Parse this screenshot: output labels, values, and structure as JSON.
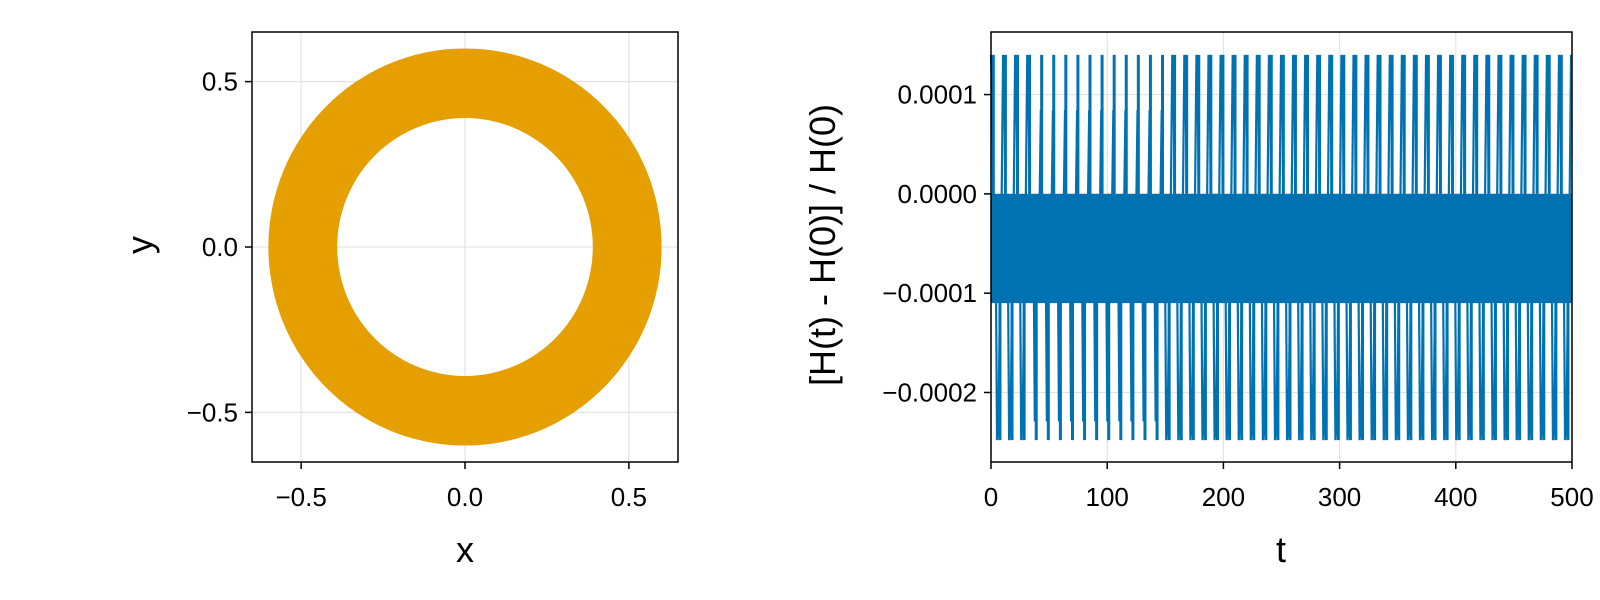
{
  "colors": {
    "orbit": "#E69F00",
    "energy": "#0072B2"
  },
  "chart_data": [
    {
      "type": "scatter",
      "xlabel": "x",
      "ylabel": "y",
      "xlim": [
        -0.65,
        0.65
      ],
      "ylim": [
        -0.65,
        0.65
      ],
      "xticks": [
        -0.5,
        0.0,
        0.5
      ],
      "yticks": [
        -0.5,
        0.0,
        0.5
      ],
      "xtick_labels": [
        "−0.5",
        "0.0",
        "0.5"
      ],
      "ytick_labels": [
        "−0.5",
        "0.0",
        "0.5"
      ],
      "grid": true,
      "series": [
        {
          "shape": "annulus",
          "center": [
            0,
            0
          ],
          "inner_radius": 0.39,
          "outer_radius": 0.6,
          "points": 1000
        }
      ]
    },
    {
      "type": "line",
      "xlabel": "t",
      "ylabel": "[H(t) - H(0)] / H(0)",
      "xlim": [
        0,
        500
      ],
      "ylim": [
        -0.00027,
        0.000163
      ],
      "xticks": [
        0,
        100,
        200,
        300,
        400,
        500
      ],
      "yticks": [
        0.0001,
        0.0,
        -0.0001,
        -0.0002
      ],
      "xtick_labels": [
        "0",
        "100",
        "200",
        "300",
        "400",
        "500"
      ],
      "ytick_labels": [
        "0.0001",
        "0.0000",
        "−0.0001",
        "−0.0002"
      ],
      "grid": true,
      "series": [
        {
          "t_range": [
            0,
            500
          ],
          "period": 10.4,
          "max": 0.00014,
          "min": -0.000248,
          "dense_band": [
            -0.00011,
            0.0
          ]
        }
      ]
    }
  ]
}
